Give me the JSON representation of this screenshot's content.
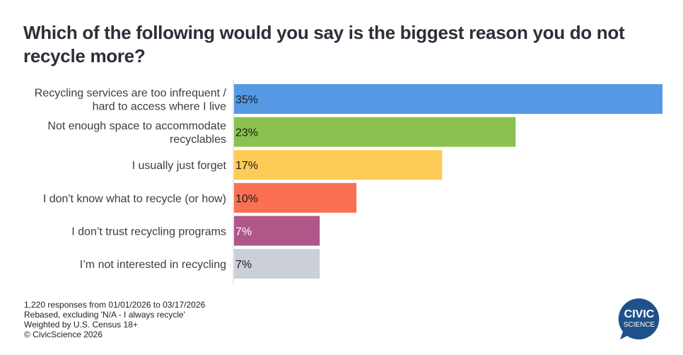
{
  "chart_data": {
    "type": "bar",
    "orientation": "horizontal",
    "title": "Which of the following would you say is the biggest reason you do not recycle more?",
    "categories": [
      [
        "Recycling services are too infrequent /",
        "hard to access where I live"
      ],
      [
        "Not enough space to accommodate",
        "recyclables"
      ],
      [
        "I usually just forget"
      ],
      [
        "I don't know what to recycle (or how)"
      ],
      [
        "I don’t trust recycling programs"
      ],
      [
        "I’m not interested in recycling"
      ]
    ],
    "values": [
      35,
      23,
      17,
      10,
      7,
      7
    ],
    "value_labels": [
      "35%",
      "23%",
      "17%",
      "10%",
      "7%",
      "7%"
    ],
    "colors": [
      "#5599e4",
      "#8bc150",
      "#fdcc56",
      "#fb7053",
      "#b05689",
      "#cbd0d8"
    ],
    "label_colors": [
      "#1a1a1a",
      "#1a1a1a",
      "#1a1a1a",
      "#1a1a1a",
      "#ffffff",
      "#1a1a1a"
    ],
    "xlim": [
      0,
      35
    ],
    "grid": false,
    "legend": "none",
    "xlabel": "",
    "ylabel": ""
  },
  "notes": [
    "1,220 responses from 01/01/2026 to 03/17/2026",
    "Rebased, excluding 'N/A - I always recycle'",
    "Weighted by U.S. Census 18+",
    "© CivicScience 2026"
  ],
  "logo": {
    "line1": "CIVIC",
    "line2": "SCIENCE",
    "color": "#1e5188"
  }
}
